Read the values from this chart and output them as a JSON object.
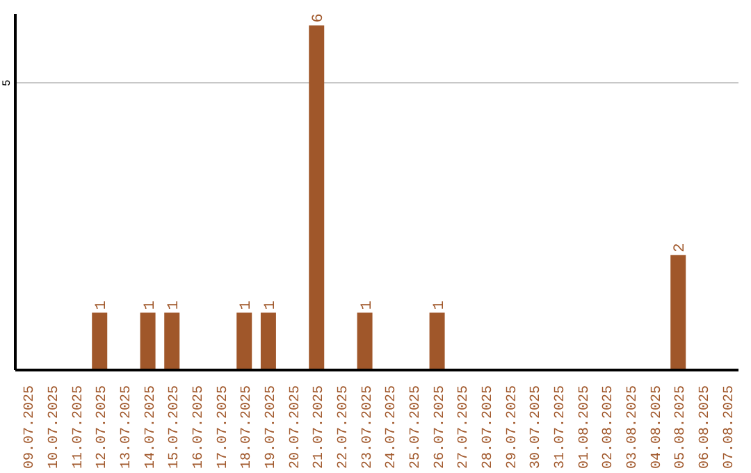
{
  "chart_data": {
    "type": "bar",
    "categories": [
      "09.07.2025",
      "10.07.2025",
      "11.07.2025",
      "12.07.2025",
      "13.07.2025",
      "14.07.2025",
      "15.07.2025",
      "16.07.2025",
      "17.07.2025",
      "18.07.2025",
      "19.07.2025",
      "20.07.2025",
      "21.07.2025",
      "22.07.2025",
      "23.07.2025",
      "24.07.2025",
      "25.07.2025",
      "26.07.2025",
      "27.07.2025",
      "28.07.2025",
      "29.07.2025",
      "30.07.2025",
      "31.07.2025",
      "01.08.2025",
      "02.08.2025",
      "03.08.2025",
      "04.08.2025",
      "05.08.2025",
      "06.08.2025",
      "07.08.2025"
    ],
    "values": [
      0,
      0,
      0,
      1,
      0,
      1,
      1,
      0,
      0,
      1,
      1,
      0,
      6,
      0,
      1,
      0,
      0,
      1,
      0,
      0,
      0,
      0,
      0,
      0,
      0,
      0,
      0,
      2,
      0,
      0
    ],
    "value_labels": [
      null,
      null,
      null,
      "1",
      null,
      "1",
      "1",
      null,
      null,
      "1",
      "1",
      null,
      "6",
      null,
      "1",
      null,
      null,
      "1",
      null,
      null,
      null,
      null,
      null,
      null,
      null,
      null,
      null,
      "2",
      null,
      null
    ],
    "color": "#a0572a",
    "ylim": [
      0,
      6.2
    ],
    "yticks": [
      5
    ],
    "grid": "y"
  }
}
